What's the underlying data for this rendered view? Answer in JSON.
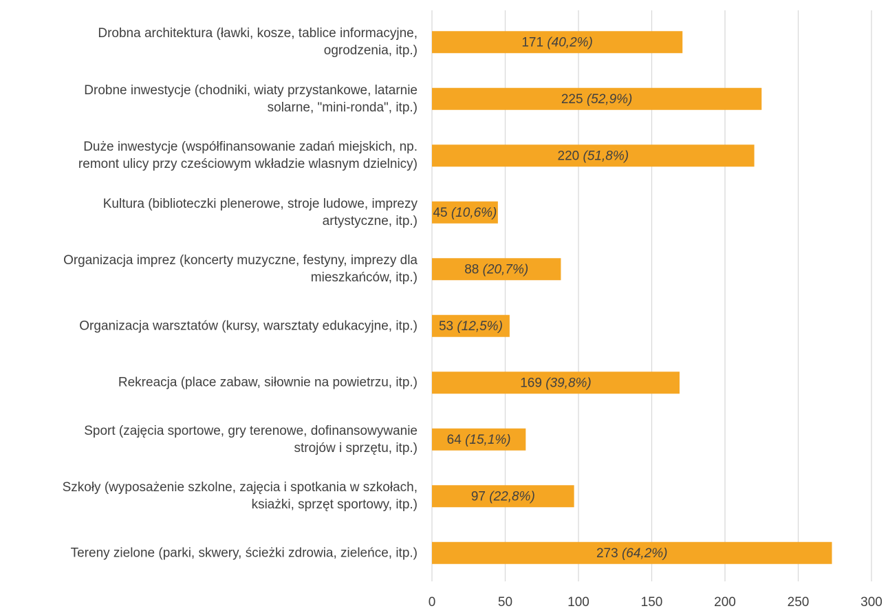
{
  "chart_data": {
    "type": "hbar",
    "categories": [
      "Drobna architektura (ławki, kosze, tablice informacyjne,\nogrodzenia, itp.)",
      "Drobne inwestycje (chodniki, wiaty przystankowe, latarnie\nsolarne, \"mini-ronda\", itp.)",
      "Duże inwestycje (współfinansowanie zadań miejskich, np.\nremont ulicy przy cześciowym wkładzie wlasnym dzielnicy)",
      "Kultura (biblioteczki plenerowe, stroje ludowe, imprezy\nartystyczne, itp.)",
      "Organizacja imprez (koncerty muzyczne, festyny, imprezy dla\nmieszkańców, itp.)",
      "Organizacja warsztatów (kursy, warsztaty edukacyjne, itp.)",
      "Rekreacja (place zabaw, siłownie na powietrzu, itp.)",
      "Sport (zajęcia sportowe, gry terenowe, dofinansowywanie\nstrojów i sprzętu, itp.)",
      "Szkoły (wyposażenie szkolne, zajęcia i spotkania w szkołach,\nksiażki, sprzęt sportowy, itp.)",
      "Tereny zielone (parki, skwery, ścieżki zdrowia, zieleńce, itp.)"
    ],
    "values": [
      171,
      225,
      220,
      45,
      88,
      53,
      169,
      64,
      97,
      273
    ],
    "percent_labels": [
      "(40,2%)",
      "(52,9%)",
      "(51,8%)",
      "(10,6%)",
      "(20,7%)",
      "(12,5%)",
      "(39,8%)",
      "(15,1%)",
      "(22,8%)",
      "(64,2%)"
    ],
    "color": "#f5a623",
    "xlim": [
      0,
      300
    ],
    "xticks": [
      0,
      50,
      100,
      150,
      200,
      250,
      300
    ],
    "grid": true
  }
}
